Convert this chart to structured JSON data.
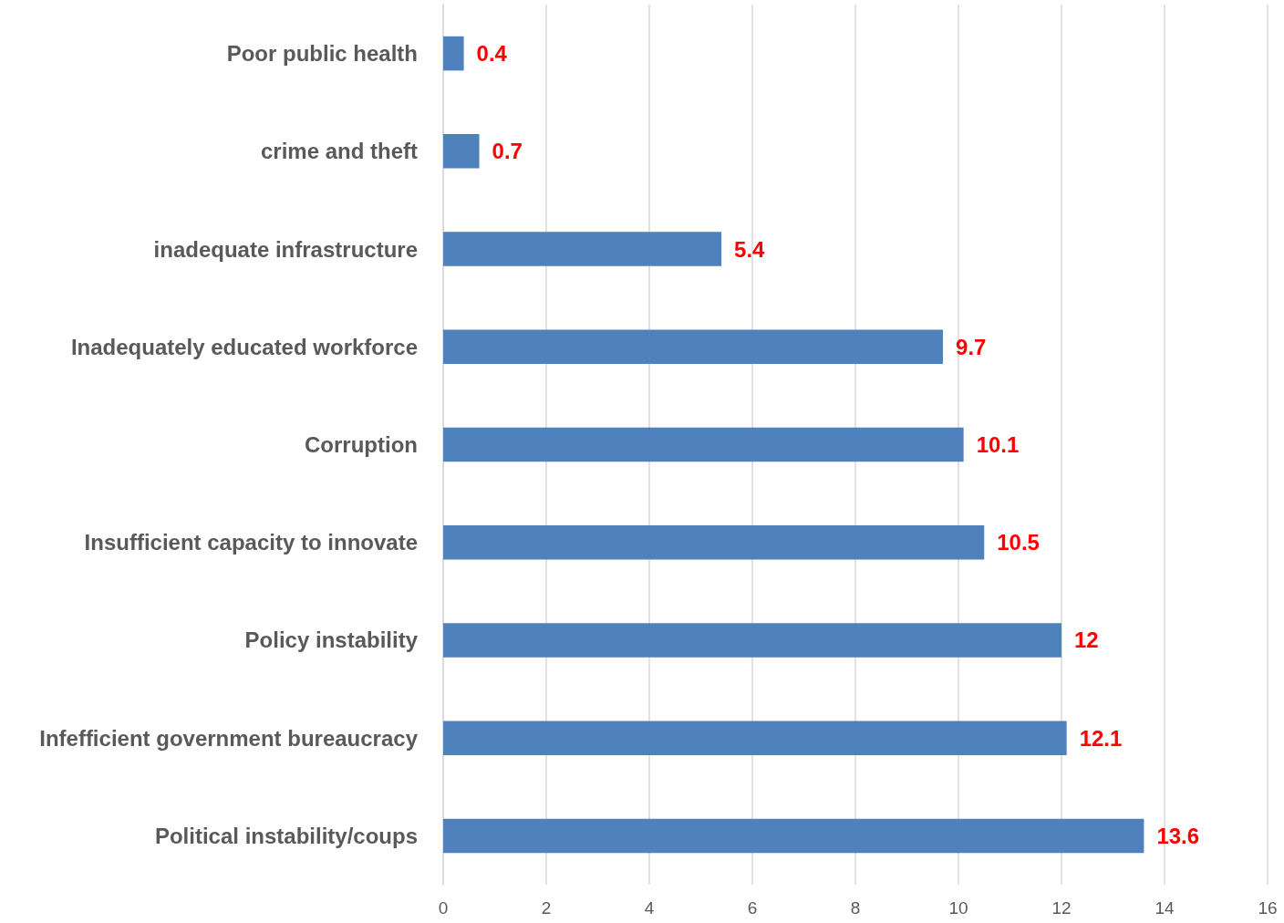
{
  "chart_data": {
    "type": "bar",
    "orientation": "horizontal",
    "categories": [
      "Poor public health",
      "crime and theft",
      "inadequate infrastructure",
      "Inadequately educated workforce",
      "Corruption",
      "Insufficient capacity to innovate",
      "Policy instability",
      "Infefficient government bureaucracy",
      "Political instability/coups"
    ],
    "values": [
      0.4,
      0.7,
      5.4,
      9.7,
      10.1,
      10.5,
      12,
      12.1,
      13.6
    ],
    "color": "#4f81bd",
    "xlim": [
      0,
      16
    ],
    "xticks": [
      0,
      2,
      4,
      6,
      8,
      10,
      12,
      14,
      16
    ],
    "grid": "x",
    "data_labels": true
  }
}
